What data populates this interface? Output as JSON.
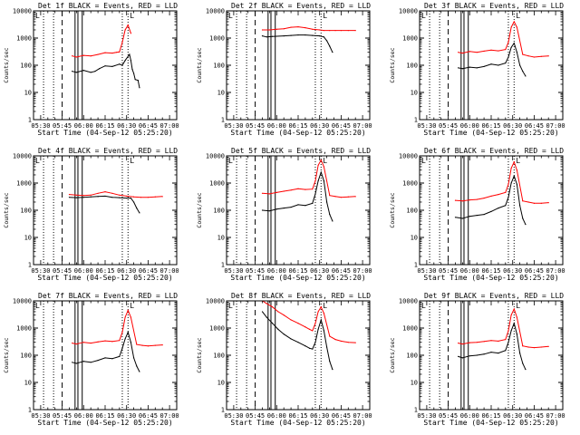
{
  "figure": {
    "background": "#ffffff",
    "axis_color": "#000000",
    "events_color": "#000000",
    "lld_color": "#ff0000",
    "marker_glyph": "L"
  },
  "chart_data": [
    {
      "type": "line",
      "title": "Det 1f BLACK = Events, RED = LLD",
      "xlabel": "Start Time (04-Sep-12 05:25:20)",
      "ylabel": "Counts/sec",
      "yscale": "log",
      "ylim": [
        1,
        10000
      ],
      "xlim_minutes_after_start": [
        0,
        100
      ],
      "xtick_labels": [
        "05:30",
        "05:45",
        "06:00",
        "06:15",
        "06:30",
        "06:45",
        "07:00"
      ],
      "ytick_labels": [
        "1",
        "10",
        "100",
        "1000",
        "10000"
      ],
      "grid": false,
      "legend": "none",
      "series": [
        {
          "name": "Events",
          "color": "#000000",
          "x": [
            27,
            30,
            35,
            40,
            43,
            46,
            50,
            55,
            60,
            62,
            64,
            67,
            68,
            69,
            70,
            71,
            73,
            74
          ],
          "y": [
            60,
            55,
            65,
            55,
            60,
            75,
            95,
            90,
            110,
            100,
            150,
            250,
            150,
            70,
            50,
            30,
            28,
            15
          ]
        },
        {
          "name": "LLD",
          "color": "#ff0000",
          "x": [
            27,
            30,
            35,
            40,
            45,
            50,
            55,
            58,
            60,
            62,
            64,
            66,
            68
          ],
          "y": [
            220,
            200,
            230,
            220,
            250,
            290,
            280,
            300,
            310,
            700,
            2000,
            3000,
            1500
          ]
        }
      ]
    },
    {
      "type": "line",
      "title": "Det 2f BLACK = Events, RED = LLD",
      "xlabel": "Start Time (04-Sep-12 05:25:20)",
      "ylabel": "Counts/sec",
      "yscale": "log",
      "ylim": [
        1,
        10000
      ],
      "xlim_minutes_after_start": [
        0,
        100
      ],
      "xtick_labels": [
        "05:30",
        "05:45",
        "06:00",
        "06:15",
        "06:30",
        "06:45",
        "07:00"
      ],
      "ytick_labels": [
        "1",
        "10",
        "100",
        "1000",
        "10000"
      ],
      "grid": false,
      "legend": "none",
      "series": [
        {
          "name": "Events",
          "color": "#000000",
          "x": [
            25,
            28,
            32,
            40,
            45,
            50,
            55,
            60,
            65,
            68,
            70,
            72,
            74
          ],
          "y": [
            1200,
            1100,
            1150,
            1200,
            1250,
            1300,
            1300,
            1250,
            1200,
            1100,
            800,
            500,
            300
          ]
        },
        {
          "name": "LLD",
          "color": "#ff0000",
          "x": [
            25,
            30,
            35,
            40,
            45,
            50,
            55,
            60,
            65,
            68,
            72,
            76,
            80,
            85,
            90
          ],
          "y": [
            2000,
            2000,
            2100,
            2200,
            2500,
            2600,
            2400,
            2100,
            2000,
            1900,
            1900,
            1900,
            1900,
            1900,
            1900
          ]
        }
      ]
    },
    {
      "type": "line",
      "title": "Det 3f BLACK = Events, RED = LLD",
      "xlabel": "Start Time (04-Sep-12 05:25:20)",
      "ylabel": "Counts/sec",
      "yscale": "log",
      "ylim": [
        1,
        10000
      ],
      "xlim_minutes_after_start": [
        0,
        100
      ],
      "xtick_labels": [
        "05:30",
        "05:45",
        "06:00",
        "06:15",
        "06:30",
        "06:45",
        "07:00"
      ],
      "ytick_labels": [
        "1",
        "10",
        "100",
        "1000",
        "10000"
      ],
      "grid": false,
      "legend": "none",
      "series": [
        {
          "name": "Events",
          "color": "#000000",
          "x": [
            27,
            30,
            35,
            40,
            45,
            50,
            55,
            60,
            62,
            64,
            66,
            68,
            70,
            72,
            74
          ],
          "y": [
            80,
            75,
            85,
            80,
            90,
            110,
            100,
            120,
            200,
            450,
            650,
            300,
            100,
            60,
            40
          ]
        },
        {
          "name": "LLD",
          "color": "#ff0000",
          "x": [
            27,
            30,
            35,
            40,
            45,
            50,
            55,
            60,
            62,
            64,
            66,
            68,
            72,
            76,
            80,
            85,
            90
          ],
          "y": [
            300,
            280,
            320,
            300,
            330,
            360,
            340,
            380,
            700,
            2500,
            4000,
            2500,
            250,
            220,
            200,
            210,
            220
          ]
        }
      ]
    },
    {
      "type": "line",
      "title": "Det 4f BLACK = Events, RED = LLD",
      "xlabel": "Start Time (04-Sep-12 05:25:20)",
      "ylabel": "Counts/sec",
      "yscale": "log",
      "ylim": [
        1,
        10000
      ],
      "xlim_minutes_after_start": [
        0,
        100
      ],
      "xtick_labels": [
        "05:30",
        "05:45",
        "06:00",
        "06:15",
        "06:30",
        "06:45",
        "07:00"
      ],
      "ytick_labels": [
        "1",
        "10",
        "100",
        "1000",
        "10000"
      ],
      "grid": false,
      "legend": "none",
      "series": [
        {
          "name": "Events",
          "color": "#000000",
          "x": [
            25,
            30,
            35,
            40,
            45,
            50,
            55,
            60,
            65,
            68,
            70,
            72,
            74
          ],
          "y": [
            300,
            290,
            300,
            310,
            320,
            330,
            300,
            290,
            280,
            280,
            200,
            120,
            80
          ]
        },
        {
          "name": "LLD",
          "color": "#ff0000",
          "x": [
            25,
            30,
            35,
            40,
            45,
            50,
            55,
            60,
            65,
            70,
            75,
            80,
            85,
            90
          ],
          "y": [
            380,
            360,
            350,
            360,
            420,
            480,
            420,
            360,
            330,
            310,
            300,
            300,
            310,
            320
          ]
        }
      ]
    },
    {
      "type": "line",
      "title": "Det 5f BLACK = Events, RED = LLD",
      "xlabel": "Start Time (04-Sep-12 05:25:20)",
      "ylabel": "Counts/sec",
      "yscale": "log",
      "ylim": [
        1,
        10000
      ],
      "xlim_minutes_after_start": [
        0,
        100
      ],
      "xtick_labels": [
        "05:30",
        "05:45",
        "06:00",
        "06:15",
        "06:30",
        "06:45",
        "07:00"
      ],
      "ytick_labels": [
        "1",
        "10",
        "100",
        "1000",
        "10000"
      ],
      "grid": false,
      "legend": "none",
      "series": [
        {
          "name": "Events",
          "color": "#000000",
          "x": [
            25,
            30,
            35,
            40,
            45,
            50,
            55,
            60,
            62,
            64,
            66,
            68,
            70,
            72,
            74
          ],
          "y": [
            100,
            95,
            110,
            120,
            130,
            160,
            150,
            180,
            400,
            1200,
            2500,
            1200,
            200,
            70,
            40
          ]
        },
        {
          "name": "LLD",
          "color": "#ff0000",
          "x": [
            25,
            30,
            35,
            40,
            45,
            50,
            55,
            60,
            62,
            64,
            66,
            68,
            72,
            76,
            80,
            85,
            90
          ],
          "y": [
            420,
            400,
            450,
            500,
            550,
            620,
            580,
            600,
            1200,
            4500,
            7000,
            4000,
            350,
            320,
            300,
            310,
            320
          ]
        }
      ]
    },
    {
      "type": "line",
      "title": "Det 6f BLACK = Events, RED = LLD",
      "xlabel": "Start Time (04-Sep-12 05:25:20)",
      "ylabel": "Counts/sec",
      "yscale": "log",
      "ylim": [
        1,
        10000
      ],
      "xlim_minutes_after_start": [
        0,
        100
      ],
      "xtick_labels": [
        "05:30",
        "05:45",
        "06:00",
        "06:15",
        "06:30",
        "06:45",
        "07:00"
      ],
      "ytick_labels": [
        "1",
        "10",
        "100",
        "1000",
        "10000"
      ],
      "grid": false,
      "legend": "none",
      "series": [
        {
          "name": "Events",
          "color": "#000000",
          "x": [
            25,
            30,
            35,
            40,
            45,
            50,
            55,
            60,
            62,
            64,
            66,
            68,
            70,
            72,
            74
          ],
          "y": [
            55,
            50,
            60,
            65,
            70,
            90,
            120,
            150,
            300,
            1000,
            1800,
            900,
            150,
            50,
            30
          ]
        },
        {
          "name": "LLD",
          "color": "#ff0000",
          "x": [
            25,
            30,
            35,
            40,
            45,
            50,
            55,
            60,
            62,
            64,
            66,
            68,
            72,
            76,
            80,
            85,
            90
          ],
          "y": [
            230,
            220,
            240,
            250,
            280,
            330,
            380,
            450,
            900,
            3500,
            6000,
            3000,
            220,
            200,
            180,
            180,
            190
          ]
        }
      ]
    },
    {
      "type": "line",
      "title": "Det 7f BLACK = Events, RED = LLD",
      "xlabel": "Start Time (04-Sep-12 05:25:20)",
      "ylabel": "Counts/sec",
      "yscale": "log",
      "ylim": [
        1,
        10000
      ],
      "xlim_minutes_after_start": [
        0,
        100
      ],
      "xtick_labels": [
        "05:30",
        "05:45",
        "06:00",
        "06:15",
        "06:30",
        "06:45",
        "07:00"
      ],
      "ytick_labels": [
        "1",
        "10",
        "100",
        "1000",
        "10000"
      ],
      "grid": false,
      "legend": "none",
      "series": [
        {
          "name": "Events",
          "color": "#000000",
          "x": [
            27,
            30,
            35,
            40,
            45,
            50,
            55,
            60,
            62,
            64,
            66,
            68,
            70,
            72,
            74
          ],
          "y": [
            55,
            50,
            60,
            55,
            65,
            80,
            75,
            90,
            180,
            400,
            700,
            300,
            80,
            40,
            25
          ]
        },
        {
          "name": "LLD",
          "color": "#ff0000",
          "x": [
            27,
            30,
            35,
            40,
            45,
            50,
            55,
            60,
            62,
            64,
            66,
            68,
            72,
            76,
            80,
            85,
            90
          ],
          "y": [
            280,
            260,
            300,
            280,
            310,
            340,
            320,
            350,
            700,
            2500,
            4500,
            2500,
            250,
            230,
            220,
            230,
            240
          ]
        }
      ]
    },
    {
      "type": "line",
      "title": "Det 8f BLACK = Events, RED = LLD",
      "xlabel": "Start Time (04-Sep-12 05:25:20)",
      "ylabel": "Counts/sec",
      "yscale": "log",
      "ylim": [
        1,
        10000
      ],
      "xlim_minutes_after_start": [
        0,
        100
      ],
      "xtick_labels": [
        "05:30",
        "05:45",
        "06:00",
        "06:15",
        "06:30",
        "06:45",
        "07:00"
      ],
      "ytick_labels": [
        "1",
        "10",
        "100",
        "1000",
        "10000"
      ],
      "grid": false,
      "legend": "none",
      "series": [
        {
          "name": "Events",
          "color": "#000000",
          "x": [
            25,
            28,
            32,
            36,
            40,
            45,
            50,
            55,
            58,
            60,
            62,
            64,
            66,
            68,
            70,
            72,
            74
          ],
          "y": [
            4000,
            2500,
            1500,
            900,
            600,
            400,
            300,
            220,
            180,
            170,
            300,
            900,
            2000,
            800,
            200,
            60,
            30
          ]
        },
        {
          "name": "LLD",
          "color": "#ff0000",
          "x": [
            25,
            28,
            32,
            36,
            40,
            45,
            50,
            55,
            58,
            60,
            62,
            64,
            66,
            68,
            72,
            76,
            80,
            85,
            90
          ],
          "y": [
            10000,
            8000,
            6000,
            4000,
            3000,
            2000,
            1500,
            1100,
            900,
            800,
            1500,
            4000,
            6000,
            3500,
            500,
            380,
            330,
            300,
            290
          ]
        }
      ]
    },
    {
      "type": "line",
      "title": "Det 9f BLACK = Events, RED = LLD",
      "xlabel": "Start Time (04-Sep-12 05:25:20)",
      "ylabel": "Counts/sec",
      "yscale": "log",
      "ylim": [
        1,
        10000
      ],
      "xlim_minutes_after_start": [
        0,
        100
      ],
      "xtick_labels": [
        "05:30",
        "05:45",
        "06:00",
        "06:15",
        "06:30",
        "06:45",
        "07:00"
      ],
      "ytick_labels": [
        "1",
        "10",
        "100",
        "1000",
        "10000"
      ],
      "grid": false,
      "legend": "none",
      "series": [
        {
          "name": "Events",
          "color": "#000000",
          "x": [
            27,
            30,
            35,
            40,
            45,
            50,
            55,
            60,
            62,
            64,
            66,
            68,
            70,
            72,
            74
          ],
          "y": [
            90,
            80,
            95,
            100,
            110,
            130,
            120,
            150,
            300,
            800,
            1500,
            600,
            120,
            50,
            30
          ]
        },
        {
          "name": "LLD",
          "color": "#ff0000",
          "x": [
            27,
            30,
            35,
            40,
            45,
            50,
            55,
            60,
            62,
            64,
            66,
            68,
            72,
            76,
            80,
            85,
            90
          ],
          "y": [
            280,
            260,
            290,
            300,
            320,
            350,
            330,
            380,
            800,
            3000,
            5000,
            2500,
            220,
            200,
            190,
            200,
            210
          ]
        }
      ]
    }
  ]
}
